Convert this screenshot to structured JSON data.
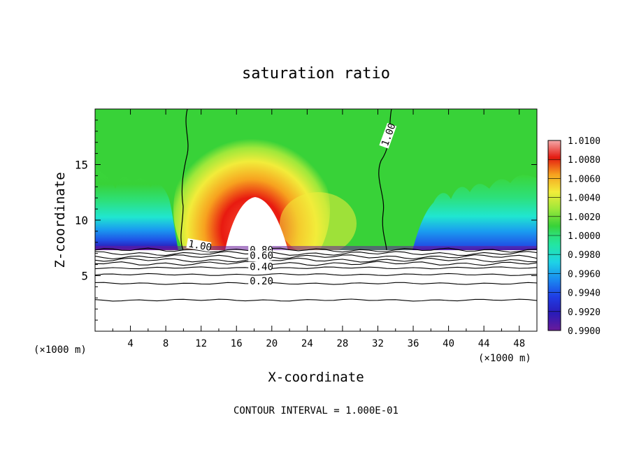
{
  "chart_data": {
    "type": "heatmap",
    "title": "saturation ratio",
    "xlabel": "X-coordinate",
    "ylabel": "Z-coordinate",
    "x_unit_left": "(×1000 m)",
    "x_unit_right": "(×1000 m)",
    "footer": "CONTOUR INTERVAL = 1.000E-01",
    "xlim": [
      0,
      50
    ],
    "ylim": [
      0,
      20
    ],
    "x_ticks": [
      "4",
      "8",
      "12",
      "16",
      "20",
      "24",
      "28",
      "32",
      "36",
      "40",
      "44",
      "48"
    ],
    "x_tick_values": [
      4,
      8,
      12,
      16,
      20,
      24,
      28,
      32,
      36,
      40,
      44,
      48
    ],
    "y_ticks": [
      "5",
      "10",
      "15"
    ],
    "y_tick_values": [
      5,
      10,
      15
    ],
    "colorbar": {
      "min": 0.99,
      "max": 1.01,
      "labels": [
        "1.0100",
        "1.0080",
        "1.0060",
        "1.0040",
        "1.0020",
        "1.0000",
        "0.9980",
        "0.9960",
        "0.9940",
        "0.9920",
        "0.9900"
      ],
      "values": [
        1.01,
        1.008,
        1.006,
        1.004,
        1.002,
        1.0,
        0.998,
        0.996,
        0.994,
        0.992,
        0.99
      ]
    },
    "contour_labels": [
      {
        "text": "1.00",
        "x": 10.5,
        "z": 7.6
      },
      {
        "text": "1.00",
        "x": 33.1,
        "z": 16.6
      },
      {
        "text": "0.80",
        "x": 17.5,
        "z": 7.0
      },
      {
        "text": "0.60",
        "x": 17.5,
        "z": 6.5
      },
      {
        "text": "0.40",
        "x": 17.5,
        "z": 5.5
      },
      {
        "text": "0.20",
        "x": 17.5,
        "z": 4.2
      }
    ],
    "contour_levels_below_cloud": [
      7.3,
      7.0,
      6.7,
      6.4,
      6.1,
      5.7,
      5.1,
      4.3,
      2.8
    ],
    "colors": {
      "saturated": "#ffffff",
      "scale": [
        "#6a1b9a",
        "#2a1bb8",
        "#1f52e6",
        "#1a9cf0",
        "#20e6d0",
        "#2de07a",
        "#38d238",
        "#9ee83a",
        "#f2ec3a",
        "#f7a21f",
        "#f4501a",
        "#e41a10",
        "#f3a9a9"
      ]
    }
  }
}
